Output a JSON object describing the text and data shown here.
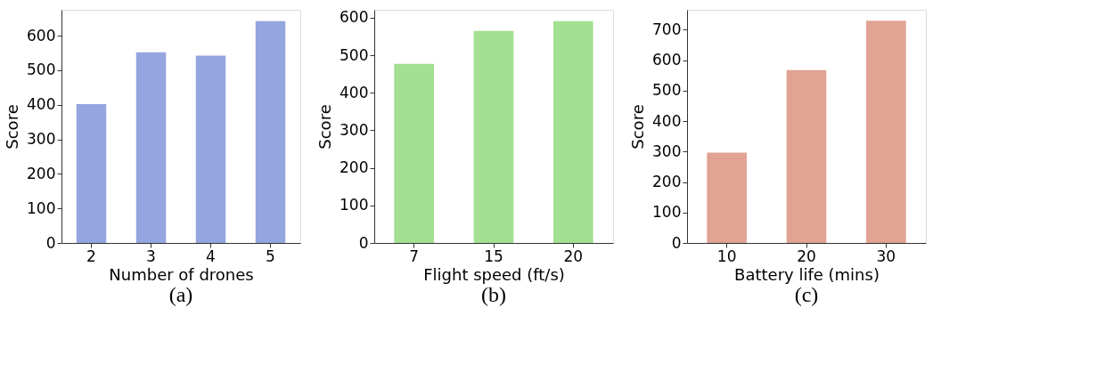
{
  "chart_data": [
    {
      "type": "bar",
      "title": "(a)",
      "xlabel": "Number of drones",
      "ylabel": "Score",
      "categories": [
        "2",
        "3",
        "4",
        "5"
      ],
      "values": [
        402,
        552,
        542,
        642
      ],
      "color": "#95a5df",
      "ylim": [
        0,
        675
      ],
      "yticks": [
        0,
        100,
        200,
        300,
        400,
        500,
        600
      ],
      "grid": false
    },
    {
      "type": "bar",
      "title": "(b)",
      "xlabel": "Flight speed (ft/s)",
      "ylabel": "Score",
      "categories": [
        "7",
        "15",
        "20"
      ],
      "values": [
        477,
        565,
        591
      ],
      "color": "#a3e092",
      "ylim": [
        0,
        621
      ],
      "yticks": [
        0,
        100,
        200,
        300,
        400,
        500,
        600
      ],
      "grid": false
    },
    {
      "type": "bar",
      "title": "(c)",
      "xlabel": "Battery life (mins)",
      "ylabel": "Score",
      "categories": [
        "10",
        "20",
        "30"
      ],
      "values": [
        296,
        567,
        729
      ],
      "color": "#e0a394",
      "ylim": [
        0,
        765
      ],
      "yticks": [
        0,
        100,
        200,
        300,
        400,
        500,
        600,
        700
      ],
      "grid": false
    }
  ]
}
